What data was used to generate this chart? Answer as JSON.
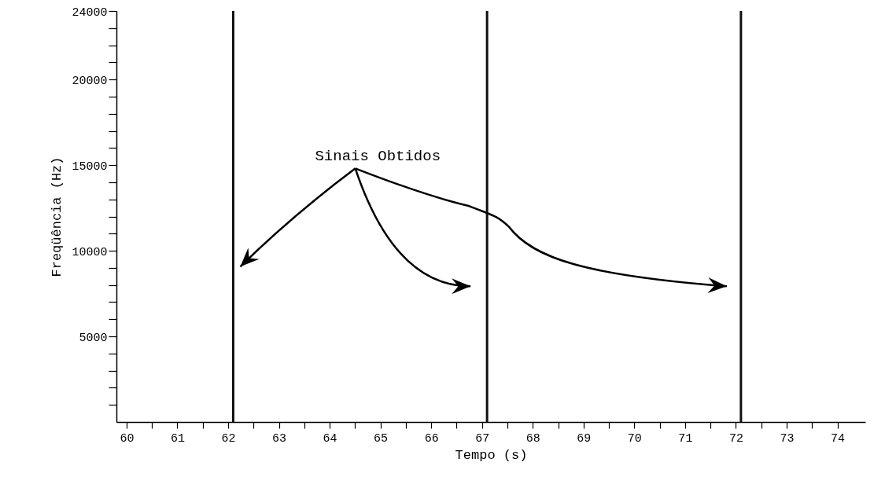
{
  "chart_data": {
    "type": "line",
    "xlabel": "Tempo (s)",
    "ylabel": "Freqüência (Hz)",
    "xlim": [
      59.8,
      74.55
    ],
    "xticks": [
      60,
      {
        "value": 60.5,
        "label": null
      },
      61,
      {
        "value": 61.5,
        "label": null
      },
      62,
      {
        "value": 62.5,
        "label": null
      },
      63,
      {
        "value": 63.5,
        "label": null
      },
      64,
      {
        "value": 64.5,
        "label": null
      },
      65,
      {
        "value": 65.5,
        "label": null
      },
      66,
      {
        "value": 66.5,
        "label": null
      },
      67,
      {
        "value": 67.5,
        "label": null
      },
      68,
      {
        "value": 68.5,
        "label": null
      },
      69,
      {
        "value": 69.5,
        "label": null
      },
      70,
      {
        "value": 70.5,
        "label": null
      },
      71,
      {
        "value": 71.5,
        "label": null
      },
      72,
      {
        "value": 72.5,
        "label": null
      },
      73,
      {
        "value": 73.5,
        "label": null
      },
      74
    ],
    "ylim": [
      0,
      24000
    ],
    "yticks": [
      {
        "value": 1000,
        "label": null
      },
      {
        "value": 2000,
        "label": null
      },
      {
        "value": 3000,
        "label": null
      },
      {
        "value": 4000,
        "label": null
      },
      5000,
      {
        "value": 6000,
        "label": null
      },
      {
        "value": 7000,
        "label": null
      },
      {
        "value": 8000,
        "label": null
      },
      {
        "value": 9000,
        "label": null
      },
      10000,
      {
        "value": 11000,
        "label": null
      },
      {
        "value": 12000,
        "label": null
      },
      {
        "value": 13000,
        "label": null
      },
      {
        "value": 14000,
        "label": null
      },
      15000,
      {
        "value": 16000,
        "label": null
      },
      {
        "value": 17000,
        "label": null
      },
      {
        "value": 18000,
        "label": null
      },
      {
        "value": 19000,
        "label": null
      },
      20000,
      {
        "value": 21000,
        "label": null
      },
      {
        "value": 22000,
        "label": null
      },
      {
        "value": 23000,
        "label": null
      },
      24000
    ],
    "ref_lines": [
      {
        "axis": "x",
        "value": 62.1,
        "color": "#111111"
      },
      {
        "axis": "x",
        "value": 67.1,
        "color": "#111111"
      },
      {
        "axis": "x",
        "value": 72.1,
        "color": "#111111"
      }
    ],
    "annotations": [
      "Sinais Obtidos"
    ]
  }
}
